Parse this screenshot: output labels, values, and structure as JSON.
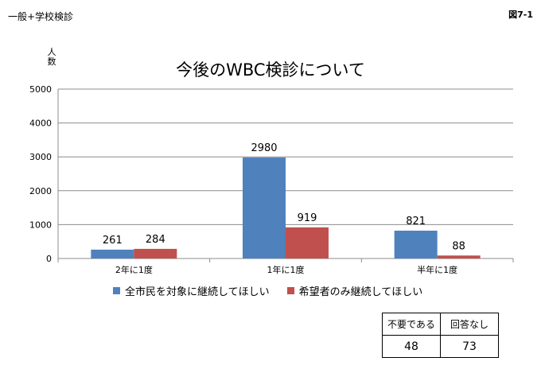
{
  "header": {
    "page_label": "一般+学校検診",
    "figure_label": "図7-1"
  },
  "chart_data": {
    "type": "bar",
    "title": "今後のWBC検診について",
    "ylabel": "人数",
    "xlabel": "",
    "ylim": [
      0,
      5000
    ],
    "yticks": [
      0,
      1000,
      2000,
      3000,
      4000,
      5000
    ],
    "grid": true,
    "legend_position": "bottom",
    "categories": [
      "2年に1度",
      "1年に1度",
      "半年に1度"
    ],
    "series": [
      {
        "name": "全市民を対象に継続してほしい",
        "color": "#4f81bd",
        "values": [
          261,
          2980,
          821
        ]
      },
      {
        "name": "希望者のみ継続してほしい",
        "color": "#c0504d",
        "values": [
          284,
          919,
          88
        ]
      }
    ]
  },
  "other_responses": {
    "headers": [
      "不要である",
      "回答なし"
    ],
    "values": [
      "48",
      "73"
    ]
  }
}
